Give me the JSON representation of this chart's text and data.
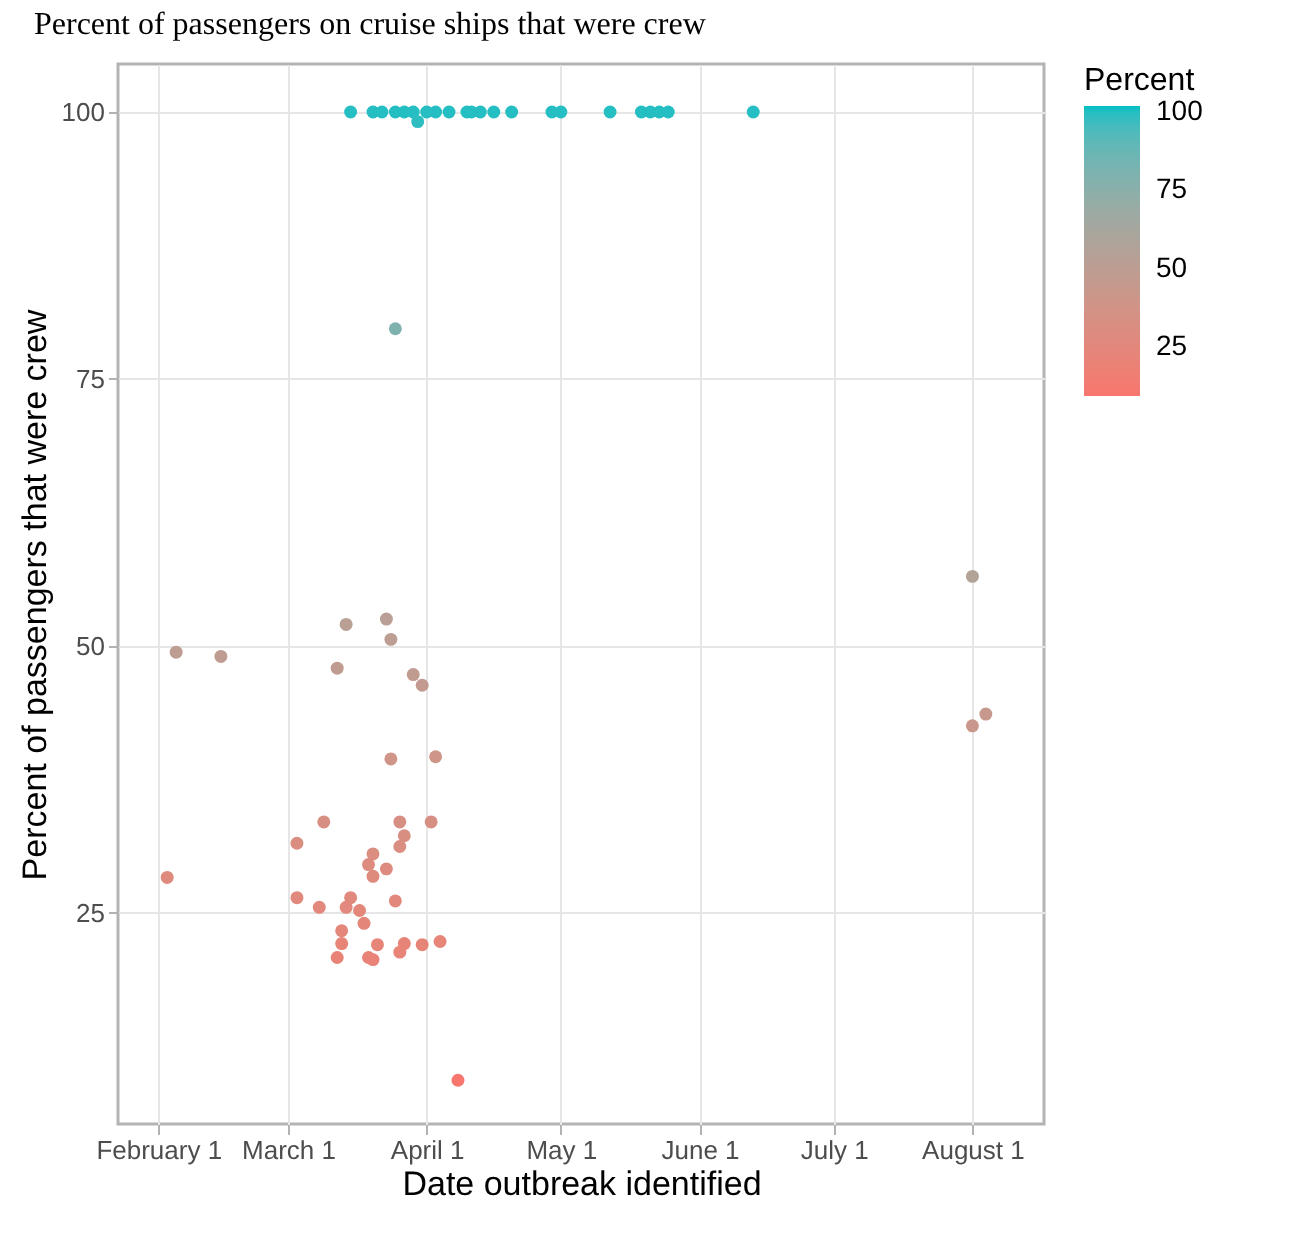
{
  "chart_data": {
    "type": "scatter",
    "title": "Percent of passengers on cruise ships that were crew",
    "xlabel": "Date outbreak identified",
    "ylabel": "Percent of passengers that were crew",
    "legend_title": "Percent",
    "x": [
      "--03-15",
      "--03-20",
      "--03-22",
      "--03-25",
      "--03-27",
      "--03-29",
      "--03-30",
      "--04-01",
      "--04-03",
      "--04-06",
      "--04-10",
      "--04-11",
      "--04-13",
      "--04-16",
      "--04-20",
      "--04-29",
      "--05-01",
      "--05-12",
      "--05-19",
      "--05-21",
      "--05-23",
      "--05-25",
      "--06-13",
      "--03-25",
      "--02-05",
      "--02-15",
      "--02-03",
      "--03-14",
      "--03-23",
      "--03-24",
      "--03-12",
      "--03-29",
      "--03-31",
      "--03-24",
      "--04-03",
      "--03-09",
      "--03-26",
      "--04-02",
      "--03-03",
      "--03-27",
      "--03-26",
      "--03-20",
      "--03-19",
      "--03-23",
      "--03-20",
      "--03-03",
      "--03-08",
      "--03-15",
      "--03-14",
      "--03-17",
      "--03-18",
      "--03-25",
      "--03-13",
      "--03-13",
      "--03-12",
      "--03-19",
      "--03-20",
      "--03-21",
      "--03-27",
      "--03-26",
      "--03-31",
      "--04-04",
      "--04-08",
      "--08-01",
      "--08-01",
      "--08-04"
    ],
    "values": [
      100,
      100,
      100,
      100,
      100,
      100,
      99.1,
      100,
      100,
      100,
      100,
      100,
      100,
      100,
      100,
      100,
      100,
      100,
      100,
      100,
      100,
      100,
      100,
      79.7,
      49.4,
      49.0,
      28.3,
      52.0,
      52.5,
      50.6,
      47.9,
      47.3,
      46.3,
      39.4,
      39.6,
      33.5,
      33.5,
      33.5,
      31.5,
      32.2,
      31.2,
      30.5,
      29.5,
      29.1,
      28.4,
      26.4,
      25.5,
      26.4,
      25.5,
      25.2,
      24.0,
      26.1,
      23.3,
      22.1,
      20.8,
      20.8,
      20.6,
      22.0,
      22.1,
      21.3,
      22.0,
      22.3,
      9.3,
      56.5,
      42.5,
      43.6
    ],
    "cvalues": [
      100,
      100,
      100,
      100,
      100,
      100,
      99.1,
      100,
      100,
      100,
      100,
      100,
      100,
      100,
      100,
      100,
      100,
      100,
      100,
      100,
      100,
      100,
      100,
      79.7,
      49.4,
      49.0,
      28.3,
      52.0,
      52.5,
      50.6,
      47.9,
      47.3,
      46.3,
      39.4,
      39.6,
      33.5,
      33.5,
      33.5,
      31.5,
      32.2,
      31.2,
      30.5,
      29.5,
      29.1,
      28.4,
      26.4,
      25.5,
      26.4,
      25.5,
      25.2,
      24.0,
      26.1,
      23.3,
      22.1,
      20.8,
      20.8,
      20.6,
      22.0,
      22.1,
      21.3,
      22.0,
      22.3,
      9.3,
      56.5,
      42.5,
      43.6
    ],
    "clim": [
      9.3,
      102
    ],
    "cticks": [
      25,
      50,
      75,
      100
    ],
    "xlim": [
      "--01-23",
      "--08-17"
    ],
    "xticks": [
      {
        "value": "--02-01",
        "label": "February 1"
      },
      {
        "value": "--03-01",
        "label": "March 1"
      },
      {
        "value": "--04-01",
        "label": "April 1"
      },
      {
        "value": "--05-01",
        "label": "May 1"
      },
      {
        "value": "--06-01",
        "label": "June 1"
      },
      {
        "value": "--07-01",
        "label": "July 1"
      },
      {
        "value": "--08-01",
        "label": "August 1"
      }
    ],
    "ylim": [
      5.2,
      104.5
    ],
    "yticks": [
      25,
      50,
      75,
      100
    ],
    "grid": true,
    "marker": "circle"
  }
}
